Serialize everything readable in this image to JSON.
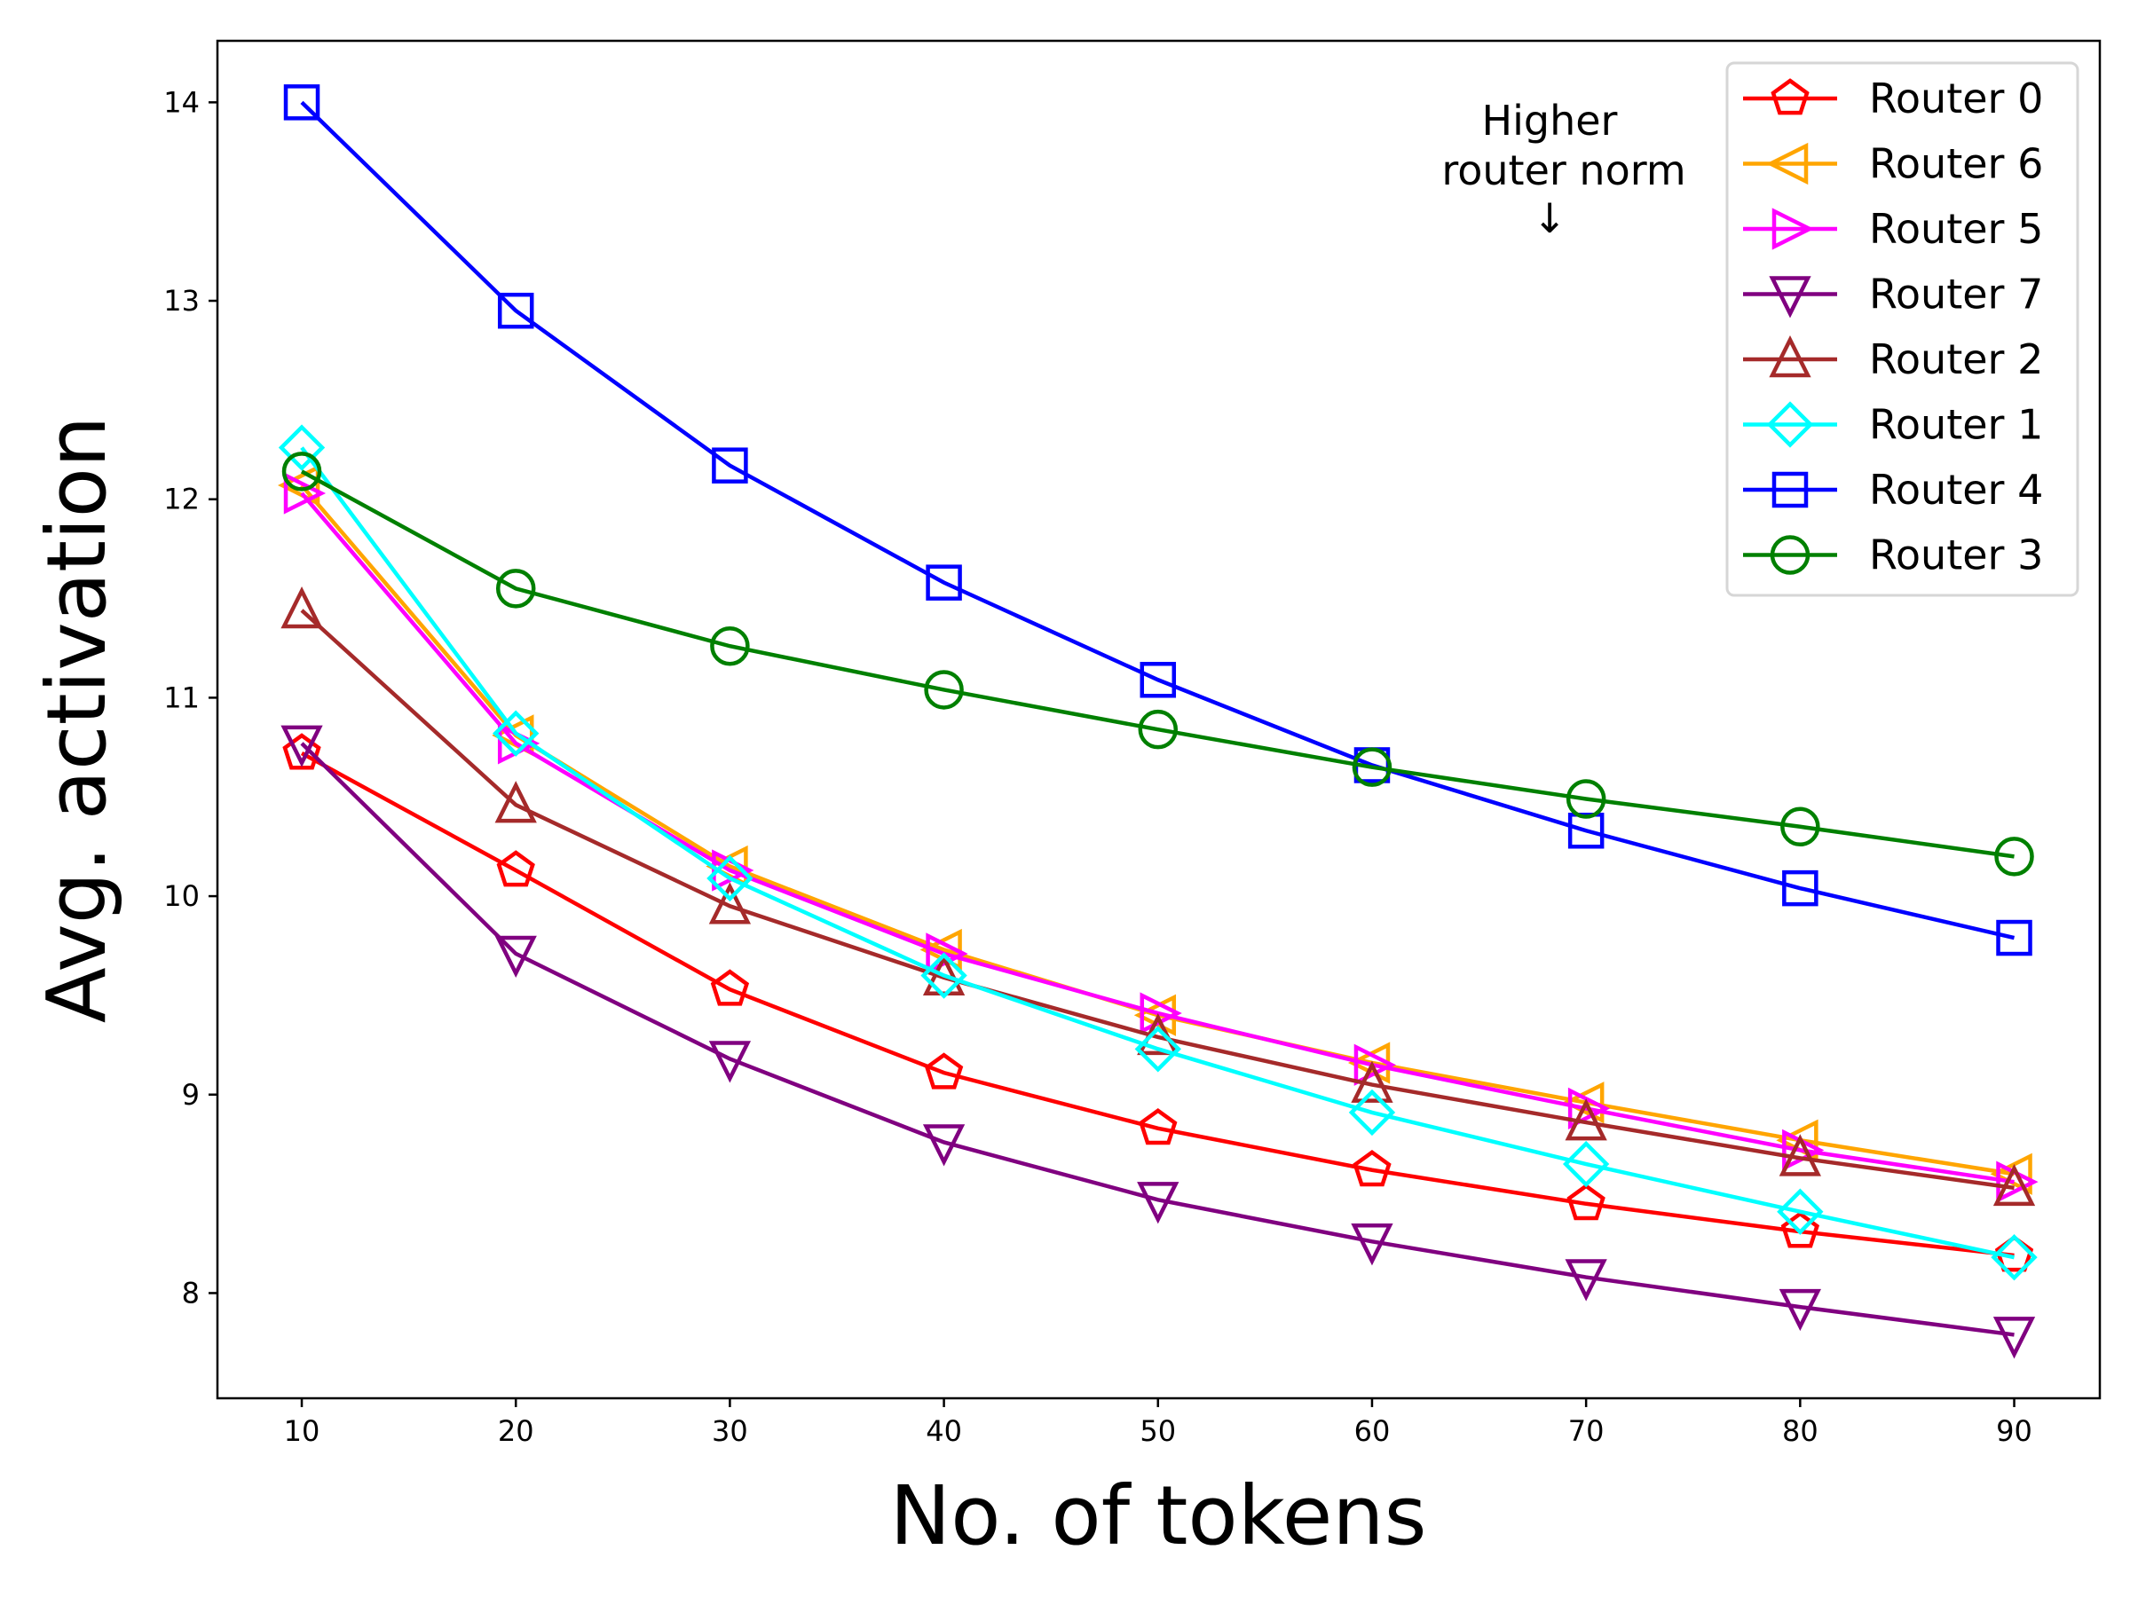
{
  "chart_data": {
    "type": "line",
    "title": "",
    "xlabel": "No. of tokens",
    "ylabel": "Avg. activation",
    "x": [
      10,
      20,
      30,
      40,
      50,
      60,
      70,
      80,
      90
    ],
    "xlim": [
      6.06,
      94
    ],
    "ylim": [
      7.47,
      14.31
    ],
    "xticks": [
      10,
      20,
      30,
      40,
      50,
      60,
      70,
      80,
      90
    ],
    "yticks": [
      8,
      9,
      10,
      11,
      12,
      13,
      14
    ],
    "grid": false,
    "legend_position": "top-right",
    "annotation": [
      "Higher",
      "router norm",
      "↓"
    ],
    "series": [
      {
        "name": "Router 0",
        "color": "#ff0000",
        "marker": "pentagon",
        "values": [
          10.72,
          10.13,
          9.53,
          9.11,
          8.83,
          8.62,
          8.45,
          8.31,
          8.19
        ]
      },
      {
        "name": "Router 6",
        "color": "#ffa500",
        "marker": "triangle-left",
        "values": [
          12.07,
          10.81,
          10.15,
          9.73,
          9.4,
          9.16,
          8.96,
          8.77,
          8.6
        ]
      },
      {
        "name": "Router 5",
        "color": "#ff00ff",
        "marker": "triangle-right",
        "values": [
          12.03,
          10.77,
          10.13,
          9.71,
          9.41,
          9.15,
          8.93,
          8.72,
          8.56
        ]
      },
      {
        "name": "Router 7",
        "color": "#800080",
        "marker": "triangle-down",
        "values": [
          10.77,
          9.71,
          9.18,
          8.76,
          8.47,
          8.26,
          8.08,
          7.93,
          7.79
        ]
      },
      {
        "name": "Router 2",
        "color": "#a52a2a",
        "marker": "triangle-up",
        "values": [
          11.44,
          10.46,
          9.95,
          9.59,
          9.29,
          9.05,
          8.86,
          8.68,
          8.53
        ]
      },
      {
        "name": "Router 1",
        "color": "#00ffff",
        "marker": "diamond",
        "values": [
          12.26,
          10.82,
          10.09,
          9.6,
          9.23,
          8.91,
          8.65,
          8.41,
          8.18
        ]
      },
      {
        "name": "Router 4",
        "color": "#0000ff",
        "marker": "square",
        "values": [
          14.0,
          12.95,
          12.17,
          11.58,
          11.09,
          10.66,
          10.33,
          10.04,
          9.79
        ]
      },
      {
        "name": "Router 3",
        "color": "#008000",
        "marker": "circle",
        "values": [
          12.14,
          11.55,
          11.26,
          11.04,
          10.84,
          10.65,
          10.49,
          10.35,
          10.2
        ]
      }
    ]
  }
}
